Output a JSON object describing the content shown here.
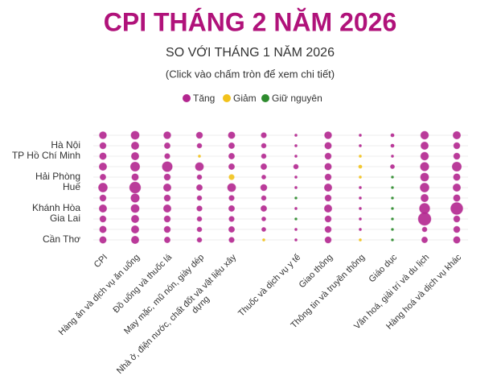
{
  "chart_data": {
    "type": "dot-matrix",
    "title": "CPI THÁNG 2 NĂM 2026",
    "subtitle": "SO VỚI THÁNG 1 NĂM 2026",
    "note": "(Click vào chấm tròn để xem chi tiết)",
    "legend": [
      {
        "name": "Tăng",
        "color": "#b3268f"
      },
      {
        "name": "Giảm",
        "color": "#f2c21b"
      },
      {
        "name": "Giữ nguyên",
        "color": "#2e8b2e"
      }
    ],
    "categories": [
      "CPI",
      "Hàng ăn và dịch vụ ăn uống",
      "Đồ uống và thuốc lá",
      "May mặc, mũ nón, giày dép",
      "Nhà ở, điện nước, chất đốt và vật liệu xây dựng",
      null,
      "Thuốc và dịch vụ y tế",
      "Giao thông",
      "Thông tin và truyền thông",
      "Giáo dục",
      "Văn hoá, giải trí và du lịch",
      "Hàng hoá và dịch vụ khác"
    ],
    "rows": [
      null,
      "Hà Nội",
      "TP Hồ Chí Minh",
      null,
      "Hải Phòng",
      "Huế",
      null,
      "Khánh Hòa",
      "Gia Lai",
      null,
      "Cần Thơ"
    ],
    "values": [
      [
        0.9,
        1.2,
        0.9,
        0.7,
        0.8,
        0.5,
        0.1,
        0.9,
        0.1,
        0.2,
        1.1,
        1.0
      ],
      [
        0.7,
        1.0,
        0.6,
        0.4,
        0.6,
        0.4,
        0.1,
        0.8,
        0.1,
        0.2,
        1.0,
        0.7
      ],
      [
        0.8,
        1.0,
        0.5,
        -0.1,
        0.6,
        0.4,
        0.1,
        0.7,
        -0.1,
        0.1,
        1.1,
        0.7
      ],
      [
        1.0,
        1.5,
        1.8,
        1.2,
        0.6,
        0.6,
        0.4,
        0.8,
        -0.2,
        0.3,
        1.3,
        1.5
      ],
      [
        0.6,
        0.8,
        0.7,
        0.4,
        -0.5,
        0.3,
        0.1,
        0.7,
        -0.1,
        0,
        1.2,
        0.8
      ],
      [
        1.4,
        2.2,
        1.0,
        0.6,
        1.2,
        0.7,
        0.1,
        1.0,
        0.1,
        0,
        1.4,
        1.0
      ],
      [
        0.7,
        1.3,
        0.7,
        0.4,
        0.5,
        0.4,
        0,
        0.7,
        0.1,
        0,
        1.0,
        0.8
      ],
      [
        1.0,
        1.2,
        1.0,
        0.5,
        0.6,
        0.6,
        0.1,
        1.0,
        0.1,
        0,
        1.9,
        2.6
      ],
      [
        0.7,
        1.0,
        0.7,
        0.4,
        0.5,
        0.3,
        0,
        0.7,
        0.1,
        0,
        2.9,
        0.7
      ],
      [
        0.8,
        1.0,
        0.7,
        0.4,
        0.6,
        0.3,
        0.1,
        0.7,
        0.1,
        0,
        0.4,
        0.7
      ],
      [
        0.8,
        1.0,
        0.6,
        0.4,
        0.5,
        -0.1,
        0.1,
        0.7,
        -0.1,
        0,
        0.6,
        0.8
      ]
    ],
    "grid": true
  }
}
